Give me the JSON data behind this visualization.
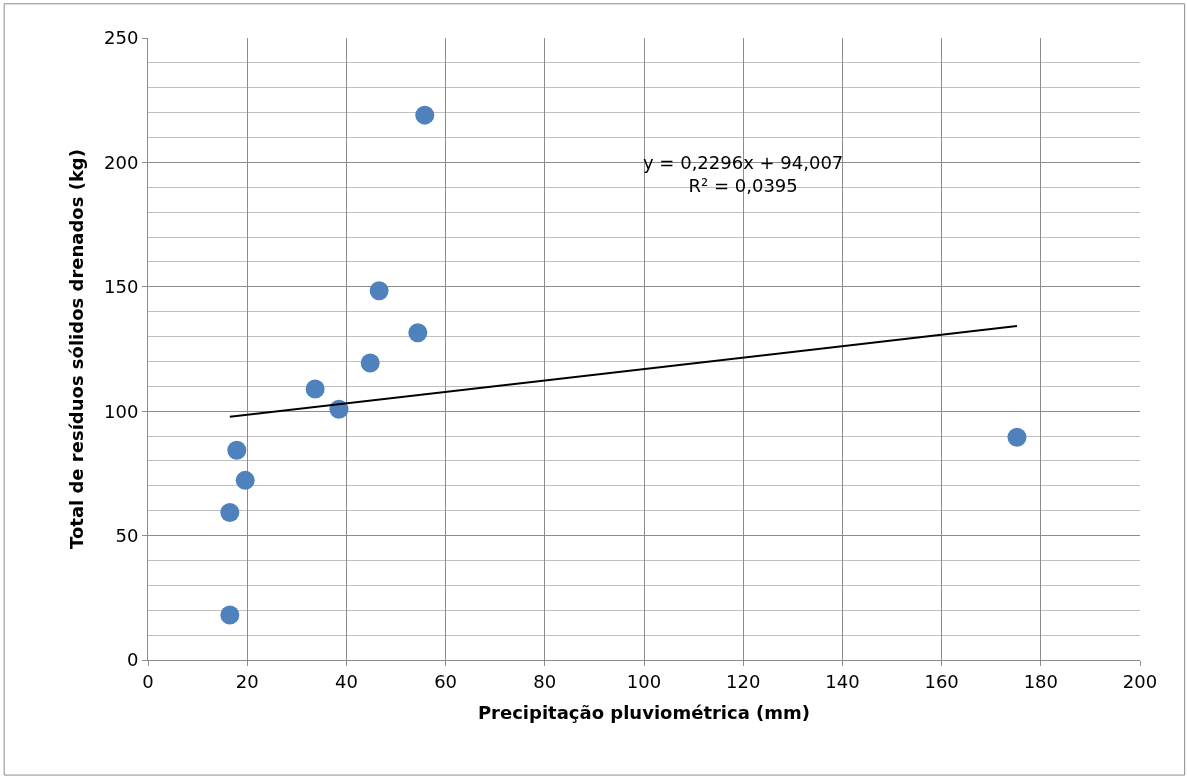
{
  "chart_data": {
    "type": "scatter",
    "xlabel": "Precipitação pluviométrica (mm)",
    "ylabel": "Total de resíduos sólidos drenados (kg)",
    "series": [
      {
        "color": "#4f81bd",
        "marker": "circle",
        "x": [
          55.8,
          46.6,
          54.4,
          44.8,
          33.7,
          38.5,
          17.9,
          19.6,
          16.5,
          16.5,
          175.2
        ],
        "values": [
          219,
          148.4,
          131.5,
          119.4,
          108.9,
          100.8,
          84.3,
          72.2,
          59.3,
          18.1,
          89.5
        ]
      },
      {
        "type": "line",
        "marker": "none",
        "color": "#000000",
        "x": [
          16.5,
          175.2
        ],
        "values": [
          97.8,
          134.2
        ]
      }
    ],
    "annotations": [
      "y = 0,2296x + 94,007\nR² = 0,0395"
    ],
    "xlim": [
      0,
      200
    ],
    "xticks": [
      0,
      20,
      40,
      60,
      80,
      100,
      120,
      140,
      160,
      180,
      200
    ],
    "ylim": [
      0,
      250
    ],
    "yticks": [
      0,
      50,
      100,
      150,
      200,
      250
    ],
    "grid": true,
    "legend": false
  }
}
